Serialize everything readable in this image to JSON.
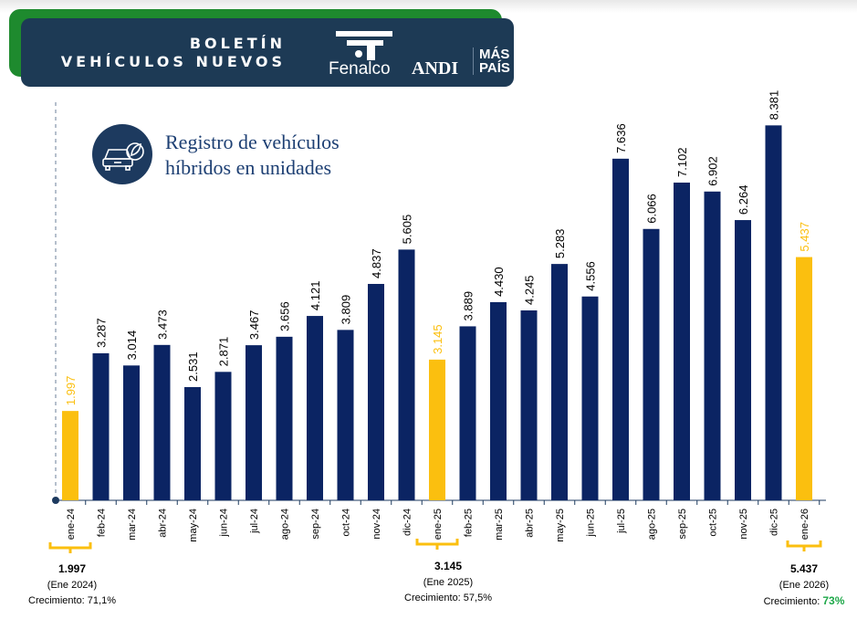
{
  "header": {
    "line1": "BOLETÍN",
    "line2": "VEHÍCULOS NUEVOS",
    "logos": [
      "Fenalco",
      "ANDI",
      "MÁS",
      "PAÍS"
    ]
  },
  "chart_data": {
    "type": "bar",
    "title": "Registro de vehículos híbridos en unidades",
    "title_line1": "Registro de vehículos",
    "title_line2": "híbridos  en unidades",
    "categories": [
      "ene-24",
      "feb-24",
      "mar-24",
      "abr-24",
      "may-24",
      "jun-24",
      "jul-24",
      "ago-24",
      "sep-24",
      "oct-24",
      "nov-24",
      "dic-24",
      "ene-25",
      "feb-25",
      "mar-25",
      "abr-25",
      "may-25",
      "jun-25",
      "jul-25",
      "ago-25",
      "sep-25",
      "oct-25",
      "nov-25",
      "dic-25",
      "ene-26"
    ],
    "values": [
      1997,
      3287,
      3014,
      3473,
      2531,
      2871,
      3467,
      3656,
      4121,
      3809,
      4837,
      5605,
      3145,
      3889,
      4430,
      4245,
      5283,
      4556,
      7636,
      6066,
      7102,
      6902,
      6264,
      8381,
      5437
    ],
    "labels": [
      "1.997",
      "3.287",
      "3.014",
      "3.473",
      "2.531",
      "2.871",
      "3.467",
      "3.656",
      "4.121",
      "3.809",
      "4.837",
      "5.605",
      "3.145",
      "3.889",
      "4.430",
      "4.245",
      "5.283",
      "4.556",
      "7.636",
      "6.066",
      "7.102",
      "6.902",
      "6.264",
      "8.381",
      "5.437"
    ],
    "highlight": [
      0,
      12,
      24
    ],
    "colors": {
      "default": "#0b2463",
      "highlight": "#fbbf0f",
      "growth_green": "#1fa84a"
    },
    "grid": false
  },
  "summaries": [
    {
      "value": "1.997",
      "period": "(Ene 2024)",
      "growth_label": "Crecimiento: ",
      "growth": "71,1%"
    },
    {
      "value": "3.145",
      "period": "(Ene 2025)",
      "growth_label": "Crecimiento: ",
      "growth": "57,5%"
    },
    {
      "value": "5.437",
      "period": "(Ene 2026)",
      "growth_label": "Crecimiento: ",
      "growth": "73%"
    }
  ]
}
